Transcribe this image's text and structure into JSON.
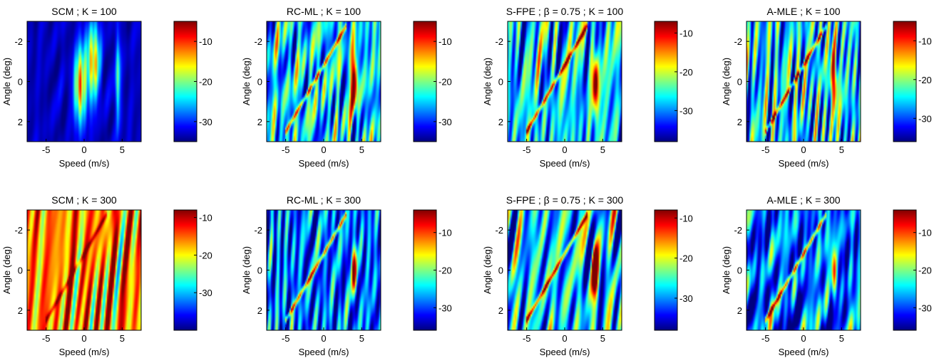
{
  "chart_data": [
    {
      "type": "heatmap",
      "title": "SCM ; K = 100",
      "xlabel": "Speed (m/s)",
      "ylabel": "Angle (deg)",
      "xlim": [
        -7.5,
        7.5
      ],
      "ylim": [
        -3,
        3
      ],
      "y_reversed": true,
      "xticks": [
        -5,
        0,
        5
      ],
      "yticks": [
        -2,
        0,
        2
      ],
      "colorbar": {
        "ticks": [
          -10,
          -20,
          -30
        ],
        "range": [
          -35,
          -5
        ]
      },
      "colormap": "jet",
      "pattern": "clean",
      "track": false,
      "ridges": [
        {
          "x": -0.5,
          "y": 0.2,
          "sx": 0.55,
          "sy": 1.3,
          "a": 0.85
        },
        {
          "x": 1.2,
          "y": -1.0,
          "sx": 0.6,
          "sy": 1.3,
          "a": 0.8
        },
        {
          "x": 4.5,
          "y": 0,
          "sx": 0.25,
          "sy": 1.6,
          "a": 0.45
        }
      ]
    },
    {
      "type": "heatmap",
      "title": "RC-ML ; K = 100",
      "xlabel": "Speed (m/s)",
      "ylabel": "Angle (deg)",
      "xlim": [
        -7.5,
        7.5
      ],
      "ylim": [
        -3,
        3
      ],
      "y_reversed": true,
      "xticks": [
        -5,
        0,
        5
      ],
      "yticks": [
        -2,
        0,
        2
      ],
      "colorbar": {
        "ticks": [
          -10,
          -20,
          -30
        ],
        "range": [
          -35,
          -5
        ]
      },
      "colormap": "jet",
      "pattern": "speckle",
      "track": true,
      "ridges": [
        {
          "x": 4,
          "y": 0,
          "sx": 0.3,
          "sy": 1.0,
          "a": 0.8
        }
      ]
    },
    {
      "type": "heatmap",
      "title": "S-FPE ; β = 0.75 ; K = 100",
      "xlabel": "Speed (m/s)",
      "ylabel": "Angle (deg)",
      "xlim": [
        -7.5,
        7.5
      ],
      "ylim": [
        -3,
        3
      ],
      "y_reversed": true,
      "xticks": [
        -5,
        0,
        5
      ],
      "yticks": [
        -2,
        0,
        2
      ],
      "colorbar": {
        "ticks": [
          -10,
          -20,
          -30
        ],
        "range": [
          -38,
          -7
        ]
      },
      "colormap": "jet",
      "pattern": "speckle",
      "track": true,
      "ridges": [
        {
          "x": 4,
          "y": 0,
          "sx": 0.3,
          "sy": 1.0,
          "a": 0.85
        }
      ]
    },
    {
      "type": "heatmap",
      "title": "A-MLE ; K = 100",
      "xlabel": "Speed (m/s)",
      "ylabel": "Angle (deg)",
      "xlim": [
        -7.5,
        7.5
      ],
      "ylim": [
        -3,
        3
      ],
      "y_reversed": true,
      "xticks": [
        -5,
        0,
        5
      ],
      "yticks": [
        -2,
        0,
        2
      ],
      "colorbar": {
        "ticks": [
          -10,
          -20,
          -30
        ],
        "range": [
          -36,
          -5
        ]
      },
      "colormap": "jet",
      "pattern": "speckle",
      "track": true,
      "ridges": [
        {
          "x": 4,
          "y": 0,
          "sx": 0.3,
          "sy": 1.0,
          "a": 0.75
        }
      ]
    },
    {
      "type": "heatmap",
      "title": "SCM ; K = 300",
      "xlabel": "Speed (m/s)",
      "ylabel": "Angle (deg)",
      "xlim": [
        -7.5,
        7.5
      ],
      "ylim": [
        -3,
        3
      ],
      "y_reversed": true,
      "xticks": [
        -5,
        0,
        5
      ],
      "yticks": [
        -2,
        0,
        2
      ],
      "colorbar": {
        "ticks": [
          -10,
          -20,
          -30
        ],
        "range": [
          -40,
          -8
        ]
      },
      "colormap": "jet",
      "pattern": "hot",
      "track": true,
      "ridges": []
    },
    {
      "type": "heatmap",
      "title": "RC-ML ; K = 300",
      "xlabel": "Speed (m/s)",
      "ylabel": "Angle (deg)",
      "xlim": [
        -7.5,
        7.5
      ],
      "ylim": [
        -3,
        3
      ],
      "y_reversed": true,
      "xticks": [
        -5,
        0,
        5
      ],
      "yticks": [
        -2,
        0,
        2
      ],
      "colorbar": {
        "ticks": [
          -10,
          -20,
          -30
        ],
        "range": [
          -36,
          -4
        ]
      },
      "colormap": "jet",
      "pattern": "dark",
      "track": true,
      "ridges": [
        {
          "x": 4,
          "y": 0,
          "sx": 0.25,
          "sy": 0.8,
          "a": 0.75
        }
      ]
    },
    {
      "type": "heatmap",
      "title": "S-FPE ; β = 0.75 ; K = 300",
      "xlabel": "Speed (m/s)",
      "ylabel": "Angle (deg)",
      "xlim": [
        -7.5,
        7.5
      ],
      "ylim": [
        -3,
        3
      ],
      "y_reversed": true,
      "xticks": [
        -5,
        0,
        5
      ],
      "yticks": [
        -2,
        0,
        2
      ],
      "colorbar": {
        "ticks": [
          -10,
          -20,
          -30
        ],
        "range": [
          -38,
          -8
        ]
      },
      "colormap": "jet",
      "pattern": "speckle",
      "track": true,
      "ridges": [
        {
          "x": 4,
          "y": 0,
          "sx": 0.3,
          "sy": 0.9,
          "a": 0.8
        }
      ]
    },
    {
      "type": "heatmap",
      "title": "A-MLE ; K = 300",
      "xlabel": "Speed (m/s)",
      "ylabel": "Angle (deg)",
      "xlim": [
        -7.5,
        7.5
      ],
      "ylim": [
        -3,
        3
      ],
      "y_reversed": true,
      "xticks": [
        -5,
        0,
        5
      ],
      "yticks": [
        -2,
        0,
        2
      ],
      "colorbar": {
        "ticks": [
          -10,
          -20,
          -30
        ],
        "range": [
          -36,
          -4
        ]
      },
      "colormap": "jet",
      "pattern": "dark",
      "track": true,
      "ridges": [
        {
          "x": 4,
          "y": 0,
          "sx": 0.25,
          "sy": 0.8,
          "a": 0.7
        }
      ]
    }
  ]
}
